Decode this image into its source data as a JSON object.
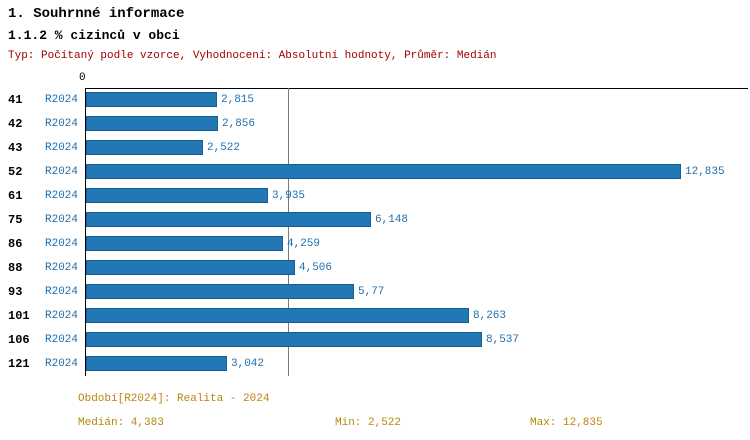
{
  "header": {
    "title": "1. Souhrnné informace",
    "subtitle": "1.1.2 % cizinců v obci",
    "meta": "Typ: Počítaný podle vzorce, Vyhodnocení: Absolutní hodnoty, Průměr: Medián"
  },
  "chart_data": {
    "type": "bar",
    "orientation": "horizontal",
    "title": "1.1.2 % cizinců v obci",
    "categories": [
      "41",
      "42",
      "43",
      "52",
      "61",
      "75",
      "86",
      "88",
      "93",
      "101",
      "106",
      "121"
    ],
    "series_label": "R2024",
    "values": [
      2.815,
      2.856,
      2.522,
      12.835,
      3.935,
      6.148,
      4.259,
      4.506,
      5.77,
      8.263,
      8.537,
      3.042
    ],
    "value_labels": [
      "2,815",
      "2,856",
      "2,522",
      "12,835",
      "3,935",
      "6,148",
      "4,259",
      "4,506",
      "5,77",
      "8,263",
      "8,537",
      "3,042"
    ],
    "axis_zero_label": "0",
    "xlim": [
      0,
      14.3
    ],
    "median_line_value": 4.383,
    "bar_color": "#2277b5",
    "grid": false,
    "legend_position": "none"
  },
  "footer": {
    "period": "Období[R2024]: Realita - 2024",
    "median": "Medián: 4,383",
    "min": "Min: 2,522",
    "max": "Max: 12,835"
  }
}
